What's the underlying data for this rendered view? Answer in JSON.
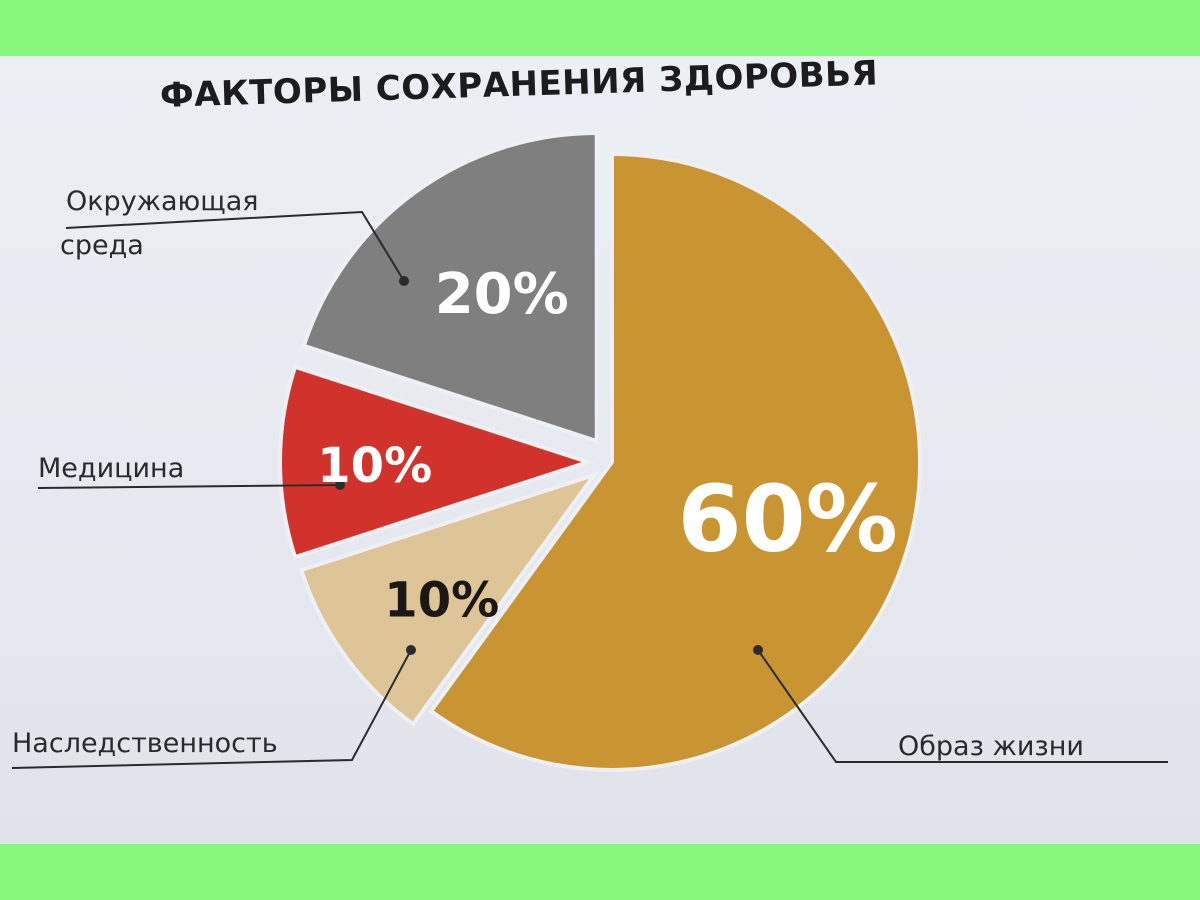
{
  "chart_data": {
    "type": "pie",
    "title": "ФАКТОРЫ СОХРАНЕНИЯ ЗДОРОВЬЯ",
    "slices": [
      {
        "label": "Образ жизни",
        "value": 60,
        "text": "60%",
        "color": "#c99532",
        "text_color": "#ffffff"
      },
      {
        "label": "Наследственность",
        "value": 10,
        "text": "10%",
        "color": "#ddc598",
        "text_color": "#1c1712"
      },
      {
        "label": "Медицина",
        "value": 10,
        "text": "10%",
        "color": "#d2322c",
        "text_color": "#ffffff"
      },
      {
        "label": "Окружающая среда",
        "value": 20,
        "text": "20%",
        "color": "#7f7f80",
        "text_color": "#ffffff"
      }
    ]
  }
}
